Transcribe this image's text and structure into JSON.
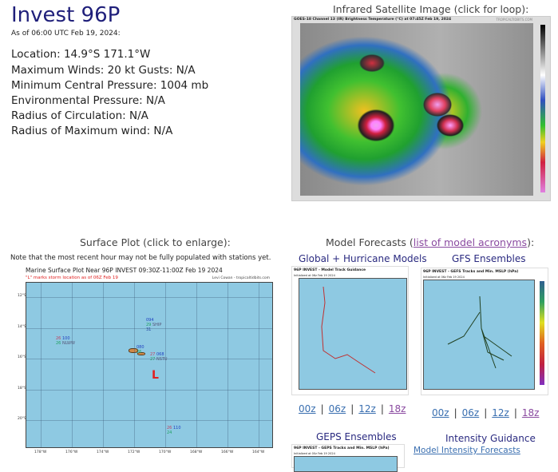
{
  "storm": {
    "title": "Invest 96P",
    "as_of": "As of 06:00 UTC Feb 19, 2024:",
    "details": [
      "Location: 14.9°S 171.1°W",
      "Maximum Winds: 20 kt  Gusts: N/A",
      "Minimum Central Pressure: 1004 mb",
      "Environmental Pressure: N/A",
      "Radius of Circulation: N/A",
      "Radius of Maximum wind: N/A"
    ]
  },
  "satellite": {
    "heading": "Infrared Satellite Image (click for loop):",
    "caption": "GOES-18 Channel 13 (IR) Brightness Temperature (°C) at 07:45Z Feb 19, 2024",
    "credit": "TROPICALTIDBITS.COM"
  },
  "surface": {
    "heading": "Surface Plot (click to enlarge):",
    "note": "Note that the most recent hour may not be fully populated with stations yet.",
    "plot_title": "Marine Surface Plot Near 96P INVEST 09:30Z-11:00Z Feb 19 2024",
    "plot_subtitle": "\"L\" marks storm location as of 06Z Feb 19",
    "credit": "Levi Cowan - tropicaltidbits.com",
    "lat_ticks": [
      "12°S",
      "14°S",
      "16°S",
      "18°S",
      "20°S"
    ],
    "lon_ticks": [
      "178°W",
      "176°W",
      "174°W",
      "172°W",
      "170°W",
      "168°W",
      "166°W",
      "164°W"
    ],
    "storm_marker": "L",
    "stations": [
      {
        "temp": "26",
        "pres": "100",
        "dew": "26",
        "id": "NLWW"
      },
      {
        "temp": "",
        "pres": "094",
        "dew": "29",
        "id": "SHIP",
        "extra": "31"
      },
      {
        "temp": "",
        "pres": "080",
        "dew": "26",
        "id": ""
      },
      {
        "temp": "27",
        "pres": "068",
        "dew": "27",
        "id": "NSTU"
      },
      {
        "temp": "26",
        "pres": "110",
        "dew": "24",
        "id": ""
      }
    ],
    "storm_color": "#e02020"
  },
  "models": {
    "heading_prefix": "Model Forecasts (",
    "acronyms_link": "list of model acronyms",
    "heading_suffix": "):",
    "global": {
      "label": "Global + Hurricane Models",
      "caption": "96P INVEST - Model Track Guidance",
      "init": "Initialized at 06z Feb 19 2024",
      "runs": [
        "00z",
        "06z",
        "12z",
        "18z"
      ]
    },
    "gefs": {
      "label": "GFS Ensembles",
      "caption": "96P INVEST - GEFS Tracks and Min. MSLP (hPa)",
      "init": "Initialized at 06z Feb 19 2024",
      "runs": [
        "00z",
        "06z",
        "12z",
        "18z"
      ]
    },
    "geps": {
      "label": "GEPS Ensembles",
      "caption": "96P INVEST - GEPS Tracks and Min. MSLP (hPa)",
      "init": "Initialized at 00z Feb 19 2024"
    },
    "intensity": {
      "label": "Intensity Guidance",
      "link": "Model Intensity Forecasts"
    }
  }
}
